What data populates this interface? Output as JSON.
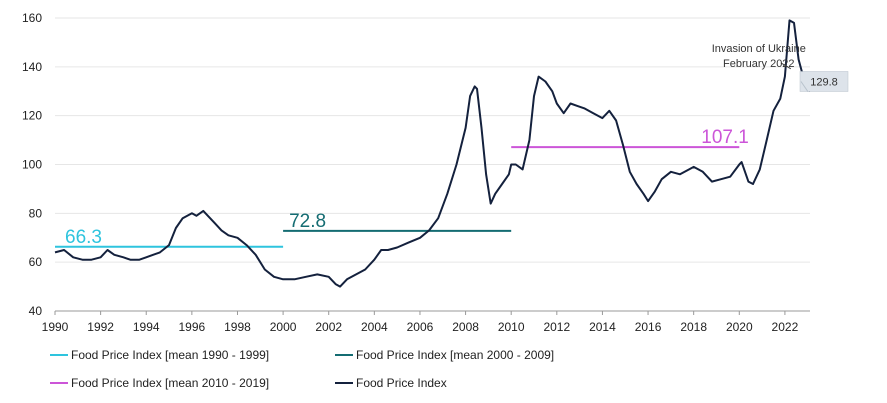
{
  "chart_data": {
    "type": "line",
    "y_ticks": [
      "40",
      "60",
      "80",
      "100",
      "120",
      "140",
      "160"
    ],
    "x_ticks": [
      "1990",
      "1992",
      "1994",
      "1996",
      "1998",
      "2000",
      "2002",
      "2004",
      "2006",
      "2008",
      "2010",
      "2012",
      "2014",
      "2016",
      "2018",
      "2020",
      "2022"
    ],
    "xlim": [
      1990,
      2023.1
    ],
    "ylim": [
      40,
      160
    ],
    "grid": "horizontal",
    "legend_position": "bottom",
    "series": [
      {
        "name": "Food Price Index",
        "color": "#14213d",
        "points": [
          [
            1990.0,
            64
          ],
          [
            1990.4,
            65
          ],
          [
            1990.8,
            62
          ],
          [
            1991.2,
            61
          ],
          [
            1991.6,
            61
          ],
          [
            1992.0,
            62
          ],
          [
            1992.3,
            65
          ],
          [
            1992.6,
            63
          ],
          [
            1993.0,
            62
          ],
          [
            1993.3,
            61
          ],
          [
            1993.7,
            61
          ],
          [
            1994.0,
            62
          ],
          [
            1994.3,
            63
          ],
          [
            1994.6,
            64
          ],
          [
            1995.0,
            67
          ],
          [
            1995.3,
            74
          ],
          [
            1995.6,
            78
          ],
          [
            1996.0,
            80
          ],
          [
            1996.2,
            79
          ],
          [
            1996.5,
            81
          ],
          [
            1996.8,
            78
          ],
          [
            1997.0,
            76
          ],
          [
            1997.3,
            73
          ],
          [
            1997.6,
            71
          ],
          [
            1998.0,
            70
          ],
          [
            1998.4,
            67
          ],
          [
            1998.8,
            63
          ],
          [
            1999.2,
            57
          ],
          [
            1999.6,
            54
          ],
          [
            2000.0,
            53
          ],
          [
            2000.5,
            53
          ],
          [
            2001.0,
            54
          ],
          [
            2001.5,
            55
          ],
          [
            2002.0,
            54
          ],
          [
            2002.3,
            51
          ],
          [
            2002.5,
            50
          ],
          [
            2002.8,
            53
          ],
          [
            2003.2,
            55
          ],
          [
            2003.6,
            57
          ],
          [
            2004.0,
            61
          ],
          [
            2004.3,
            65
          ],
          [
            2004.6,
            65
          ],
          [
            2005.0,
            66
          ],
          [
            2005.5,
            68
          ],
          [
            2006.0,
            70
          ],
          [
            2006.4,
            73
          ],
          [
            2006.8,
            78
          ],
          [
            2007.2,
            88
          ],
          [
            2007.6,
            100
          ],
          [
            2008.0,
            115
          ],
          [
            2008.2,
            128
          ],
          [
            2008.4,
            132
          ],
          [
            2008.5,
            131
          ],
          [
            2008.7,
            115
          ],
          [
            2008.9,
            96
          ],
          [
            2009.1,
            84
          ],
          [
            2009.3,
            88
          ],
          [
            2009.6,
            92
          ],
          [
            2009.9,
            96
          ],
          [
            2010.0,
            100
          ],
          [
            2010.2,
            100
          ],
          [
            2010.5,
            98
          ],
          [
            2010.8,
            110
          ],
          [
            2011.0,
            128
          ],
          [
            2011.2,
            136
          ],
          [
            2011.5,
            134
          ],
          [
            2011.8,
            130
          ],
          [
            2012.0,
            125
          ],
          [
            2012.3,
            121
          ],
          [
            2012.6,
            125
          ],
          [
            2012.9,
            124
          ],
          [
            2013.2,
            123
          ],
          [
            2013.6,
            121
          ],
          [
            2014.0,
            119
          ],
          [
            2014.3,
            122
          ],
          [
            2014.6,
            118
          ],
          [
            2014.9,
            108
          ],
          [
            2015.2,
            97
          ],
          [
            2015.5,
            92
          ],
          [
            2015.8,
            88
          ],
          [
            2016.0,
            85
          ],
          [
            2016.3,
            89
          ],
          [
            2016.6,
            94
          ],
          [
            2017.0,
            97
          ],
          [
            2017.4,
            96
          ],
          [
            2017.8,
            98
          ],
          [
            2018.0,
            99
          ],
          [
            2018.4,
            97
          ],
          [
            2018.8,
            93
          ],
          [
            2019.2,
            94
          ],
          [
            2019.6,
            95
          ],
          [
            2020.0,
            100
          ],
          [
            2020.1,
            101
          ],
          [
            2020.4,
            93
          ],
          [
            2020.6,
            92
          ],
          [
            2020.9,
            98
          ],
          [
            2021.2,
            110
          ],
          [
            2021.5,
            122
          ],
          [
            2021.8,
            127
          ],
          [
            2022.0,
            136
          ],
          [
            2022.2,
            159
          ],
          [
            2022.4,
            158
          ],
          [
            2022.6,
            143
          ],
          [
            2022.8,
            136
          ],
          [
            2023.0,
            131
          ],
          [
            2023.1,
            130
          ]
        ]
      },
      {
        "name": "Food Price Index [mean 1990 - 1999]",
        "color": "#2ec4de",
        "mean": 66.3,
        "label": "66.3",
        "x_range": [
          1990,
          2000
        ]
      },
      {
        "name": "Food Price Index [mean 2000 - 2009]",
        "color": "#146c72",
        "mean": 72.8,
        "label": "72.8",
        "x_range": [
          2000,
          2010
        ]
      },
      {
        "name": "Food Price Index [mean 2010 - 2019]",
        "color": "#cc55d8",
        "mean": 107.1,
        "label": "107.1",
        "x_range": [
          2010,
          2020
        ]
      }
    ],
    "annotations": [
      {
        "text_lines": [
          "Invasion of Ukraine",
          "February 2022"
        ],
        "x": 2022.17,
        "y": 140
      },
      {
        "text": "129.8",
        "x": 2023.1,
        "y": 129.8
      }
    ]
  },
  "legend": [
    {
      "label": "Food Price Index [mean 1990 - 1999]",
      "color": "#2ec4de"
    },
    {
      "label": "Food Price Index [mean 2000 - 2009]",
      "color": "#146c72"
    },
    {
      "label": "Food Price Index [mean 2010 - 2019]",
      "color": "#cc55d8"
    },
    {
      "label": "Food Price Index",
      "color": "#14213d"
    }
  ]
}
